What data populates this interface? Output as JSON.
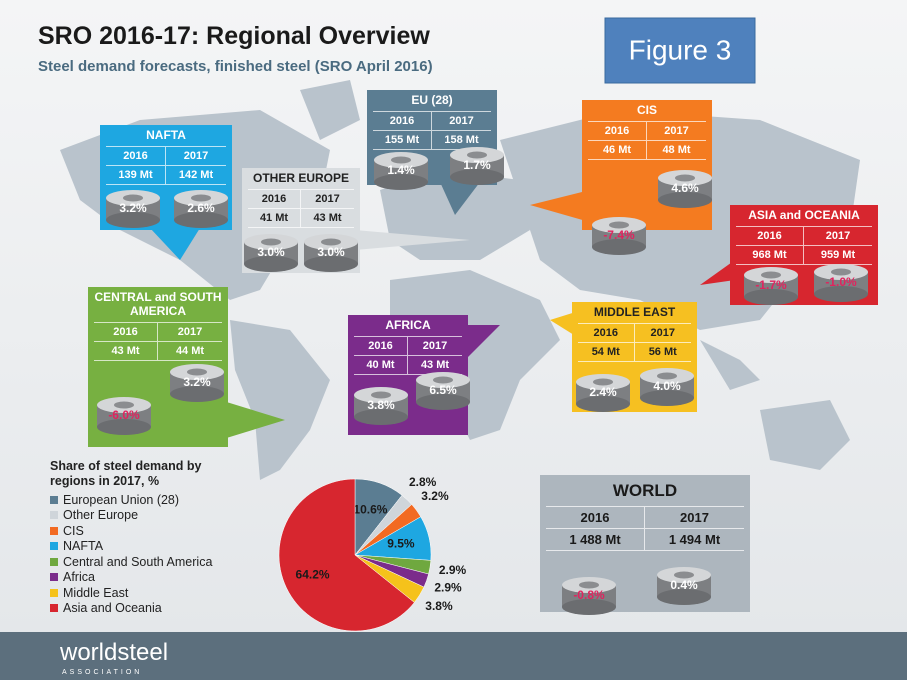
{
  "header": {
    "title": "SRO 2016-17: Regional Overview",
    "subtitle": "Steel demand forecasts, finished steel (SRO April 2016)",
    "figure_label": "Figure 3"
  },
  "regions": [
    {
      "name": "NAFTA",
      "years": [
        2016,
        2017
      ],
      "volumes": [
        "139 Mt",
        "142 Mt"
      ],
      "growth": [
        "3.2%",
        "2.6%"
      ]
    },
    {
      "name": "OTHER EUROPE",
      "years": [
        2016,
        2017
      ],
      "volumes": [
        "41 Mt",
        "43 Mt"
      ],
      "growth": [
        "3.0%",
        "3.0%"
      ]
    },
    {
      "name": "EU (28)",
      "years": [
        2016,
        2017
      ],
      "volumes": [
        "155 Mt",
        "158 Mt"
      ],
      "growth": [
        "1.4%",
        "1.7%"
      ]
    },
    {
      "name": "CIS",
      "years": [
        2016,
        2017
      ],
      "volumes": [
        "46 Mt",
        "48 Mt"
      ],
      "growth": [
        "-7.4%",
        "4.6%"
      ]
    },
    {
      "name": "ASIA and OCEANIA",
      "years": [
        2016,
        2017
      ],
      "volumes": [
        "968 Mt",
        "959 Mt"
      ],
      "growth": [
        "-1.7%",
        "-1.0%"
      ]
    },
    {
      "name": "CENTRAL and SOUTH AMERICA",
      "years": [
        2016,
        2017
      ],
      "volumes": [
        "43 Mt",
        "44 Mt"
      ],
      "growth": [
        "-6.0%",
        "3.2%"
      ]
    },
    {
      "name": "AFRICA",
      "years": [
        2016,
        2017
      ],
      "volumes": [
        "40 Mt",
        "43 Mt"
      ],
      "growth": [
        "3.8%",
        "6.5%"
      ]
    },
    {
      "name": "MIDDLE EAST",
      "years": [
        2016,
        2017
      ],
      "volumes": [
        "54 Mt",
        "56 Mt"
      ],
      "growth": [
        "2.4%",
        "4.0%"
      ]
    }
  ],
  "world": {
    "name": "WORLD",
    "years": [
      2016,
      2017
    ],
    "volumes": [
      "1 488 Mt",
      "1 494 Mt"
    ],
    "growth": [
      "-0.8%",
      "0.4%"
    ]
  },
  "chart_data": {
    "type": "pie",
    "title": "Share of steel demand by regions in 2017, %",
    "categories": [
      "European Union (28)",
      "Other Europe",
      "CIS",
      "NAFTA",
      "Central and South America",
      "Africa",
      "Middle East",
      "Asia and Oceania"
    ],
    "values": [
      10.6,
      2.8,
      3.2,
      9.5,
      2.9,
      2.9,
      3.8,
      64.2
    ],
    "value_labels": [
      "10.6%",
      "2.8%",
      "3.2%",
      "9.5%",
      "2.9%",
      "2.9%",
      "3.8%",
      "64.2%"
    ],
    "colors": [
      "#5b7d92",
      "#cfd5da",
      "#f26a22",
      "#1ea7e1",
      "#6fa83f",
      "#7b2c8b",
      "#f5c21b",
      "#d7262f"
    ]
  },
  "footer": {
    "brand": "worldsteel",
    "tagline": "ASSOCIATION"
  }
}
